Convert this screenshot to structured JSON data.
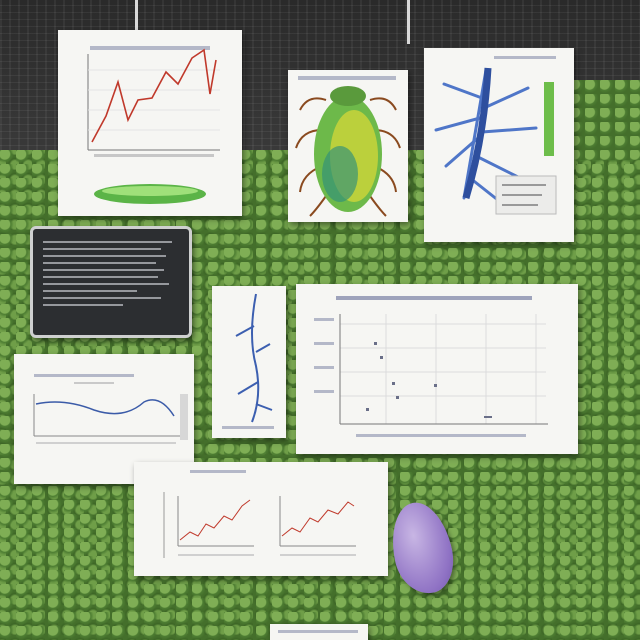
{
  "scene": {
    "colors": {
      "wall": "#2f2f2f",
      "moss": "#4d7d32",
      "paper": "#f6f6f3",
      "line_red": "#c0392b",
      "insect_green": "#7bbf3a",
      "root_blue": "#3c5fb0",
      "plum": "#9b83d0"
    },
    "items": [
      "line-chart-card",
      "insect-illustration-card",
      "blue-root-diagram-card",
      "dark-text-card",
      "curve-chart-card",
      "blue-vein-strip-card",
      "scatter-chart-card",
      "twin-sparkline-card",
      "purple-stone"
    ]
  }
}
